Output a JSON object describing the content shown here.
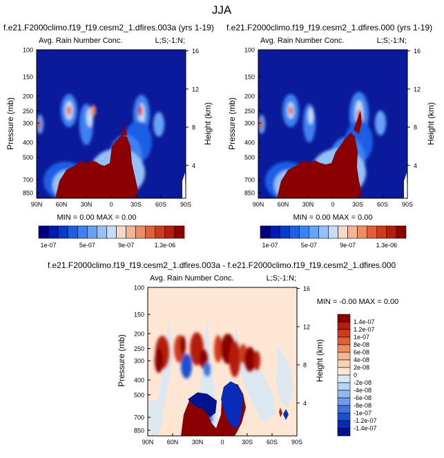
{
  "page": {
    "title": "JJA"
  },
  "panels": [
    {
      "id": "p1",
      "title": "f.e21.F2000climo.f19_f19.cesm2_1.dfires.003a (yrs 1-19)",
      "subtitle": "Avg. Rain Number Conc.",
      "corner_label": "L;S;-1:N;",
      "min_max": "MIN =   0.00   MAX =   0.00"
    },
    {
      "id": "p2",
      "title": "f.e21.F2000climo.f19_f19.cesm2_1.dfires.000 (yrs 1-19)",
      "subtitle": "Avg. Rain Number Conc.",
      "corner_label": "L;S;-1:N;",
      "min_max": "MIN =   0.00   MAX =   0.00"
    },
    {
      "id": "p3",
      "title": "f.e21.F2000climo.f19_f19.cesm2_1.dfires.003a - f.e21.F2000climo.f19_f19.cesm2_1.dfires.000",
      "subtitle": "Avg. Rain Number Conc.",
      "corner_label": "L;S;-1:N;",
      "min_max": "MIN = -0.00   MAX =   0.00"
    }
  ],
  "chart_data": {
    "type": "heatmap",
    "xlabel": "",
    "ylabel": "Pressure (mb)",
    "y2label": "Height (km)",
    "x_ticks": [
      "90N",
      "60N",
      "30N",
      "0",
      "30S",
      "60S",
      "90S"
    ],
    "x_values": [
      90,
      60,
      30,
      0,
      -30,
      -60,
      -90
    ],
    "y_ticks": [
      "100",
      "150",
      "200",
      "250",
      "300",
      "400",
      "500",
      "700",
      "850"
    ],
    "y_values": [
      100,
      150,
      200,
      250,
      300,
      400,
      500,
      700,
      850
    ],
    "ylim": [
      100,
      925
    ],
    "height_ticks": [
      "16",
      "12",
      "8",
      "4"
    ],
    "height_values": [
      16,
      12,
      8,
      4
    ],
    "colorbar_main": {
      "labels": [
        "1e-07",
        "5e-07",
        "9e-07",
        "1.3e-06"
      ],
      "colors": [
        "#00007f",
        "#001ab3",
        "#0a39d1",
        "#1f5ee6",
        "#3c82f0",
        "#66a3f5",
        "#96c1f7",
        "#c6dcf7",
        "#f5d8c8",
        "#f3b596",
        "#ee8c63",
        "#e35f3a",
        "#cf3a1c",
        "#b41e0b",
        "#8b0000"
      ]
    },
    "colorbar_diff": {
      "labels": [
        "1.4e-07",
        "1.2e-07",
        "1e-07",
        "8e-08",
        "6e-08",
        "4e-08",
        "2e-08",
        "0",
        "-2e-08",
        "-4e-08",
        "-6e-08",
        "-8e-08",
        "-1e-07",
        "-1.2e-07",
        "-1.4e-07"
      ],
      "colors": [
        "#8b0000",
        "#b41e0b",
        "#cf3a1c",
        "#e35f3a",
        "#ee8c63",
        "#f3b596",
        "#f8d2b8",
        "#fde6d4",
        "#d7e8f6",
        "#b9d3f2",
        "#93b9ee",
        "#6d9ce8",
        "#3f74df",
        "#1c4fd2",
        "#0a2bb8",
        "#00138c"
      ]
    }
  },
  "colors": {
    "background_blue": "#0a1a9a",
    "rain_red": "#8b0000",
    "diff_background": "#fde6d4"
  }
}
